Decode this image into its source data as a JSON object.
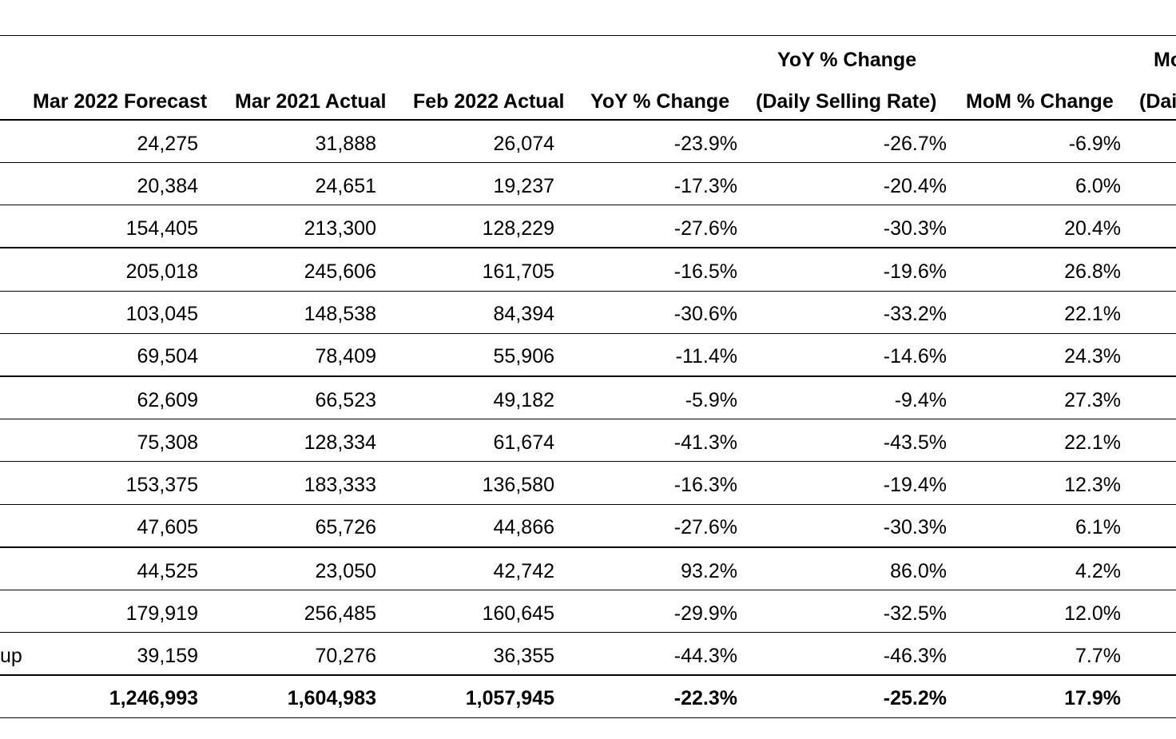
{
  "header_top": {
    "yoy_dsr_line1": "YoY % Change",
    "mom_dsr_line1_partial": "Mo"
  },
  "header": {
    "col1": "Mar 2022 Forecast",
    "col2": "Mar 2021 Actual",
    "col3": "Feb 2022 Actual",
    "col4": "YoY % Change",
    "col5": "(Daily Selling Rate)",
    "col6": "MoM % Change",
    "col7_partial": "(Dai"
  },
  "rows": [
    {
      "label": "",
      "forecast": "24,275",
      "mar2021": "31,888",
      "feb2022": "26,074",
      "yoy": "-23.9%",
      "yoy_dsr": "-26.7%",
      "mom": "-6.9%"
    },
    {
      "label": "",
      "forecast": "20,384",
      "mar2021": "24,651",
      "feb2022": "19,237",
      "yoy": "-17.3%",
      "yoy_dsr": "-20.4%",
      "mom": "6.0%"
    },
    {
      "label": "",
      "forecast": "154,405",
      "mar2021": "213,300",
      "feb2022": "128,229",
      "yoy": "-27.6%",
      "yoy_dsr": "-30.3%",
      "mom": "20.4%"
    },
    {
      "label": "",
      "forecast": "205,018",
      "mar2021": "245,606",
      "feb2022": "161,705",
      "yoy": "-16.5%",
      "yoy_dsr": "-19.6%",
      "mom": "26.8%"
    },
    {
      "label": "",
      "forecast": "103,045",
      "mar2021": "148,538",
      "feb2022": "84,394",
      "yoy": "-30.6%",
      "yoy_dsr": "-33.2%",
      "mom": "22.1%"
    },
    {
      "label": "",
      "forecast": "69,504",
      "mar2021": "78,409",
      "feb2022": "55,906",
      "yoy": "-11.4%",
      "yoy_dsr": "-14.6%",
      "mom": "24.3%"
    },
    {
      "label": "",
      "forecast": "62,609",
      "mar2021": "66,523",
      "feb2022": "49,182",
      "yoy": "-5.9%",
      "yoy_dsr": "-9.4%",
      "mom": "27.3%"
    },
    {
      "label": "",
      "forecast": "75,308",
      "mar2021": "128,334",
      "feb2022": "61,674",
      "yoy": "-41.3%",
      "yoy_dsr": "-43.5%",
      "mom": "22.1%"
    },
    {
      "label": "",
      "forecast": "153,375",
      "mar2021": "183,333",
      "feb2022": "136,580",
      "yoy": "-16.3%",
      "yoy_dsr": "-19.4%",
      "mom": "12.3%"
    },
    {
      "label": "",
      "forecast": "47,605",
      "mar2021": "65,726",
      "feb2022": "44,866",
      "yoy": "-27.6%",
      "yoy_dsr": "-30.3%",
      "mom": "6.1%"
    },
    {
      "label": "",
      "forecast": "44,525",
      "mar2021": "23,050",
      "feb2022": "42,742",
      "yoy": "93.2%",
      "yoy_dsr": "86.0%",
      "mom": "4.2%"
    },
    {
      "label": "",
      "forecast": "179,919",
      "mar2021": "256,485",
      "feb2022": "160,645",
      "yoy": "-29.9%",
      "yoy_dsr": "-32.5%",
      "mom": "12.0%"
    },
    {
      "label": "up",
      "forecast": "39,159",
      "mar2021": "70,276",
      "feb2022": "36,355",
      "yoy": "-44.3%",
      "yoy_dsr": "-46.3%",
      "mom": "7.7%"
    }
  ],
  "total": {
    "forecast": "1,246,993",
    "mar2021": "1,604,983",
    "feb2022": "1,057,945",
    "yoy": "-22.3%",
    "yoy_dsr": "-25.2%",
    "mom": "17.9%"
  }
}
